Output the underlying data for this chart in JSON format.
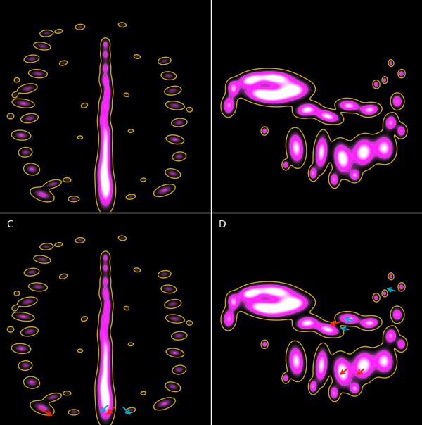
{
  "background_color": "#000000",
  "outer_contour_color": "#ccaa00",
  "inner_contour_color": "#dd44dd",
  "red_arrow_color": "#ff2200",
  "cyan_arrow_color": "#00aacc",
  "figsize": [
    6.0,
    6.04
  ],
  "dpi": 100,
  "panel_labels": [
    "C",
    "D"
  ],
  "divider_color": "#ffffff"
}
